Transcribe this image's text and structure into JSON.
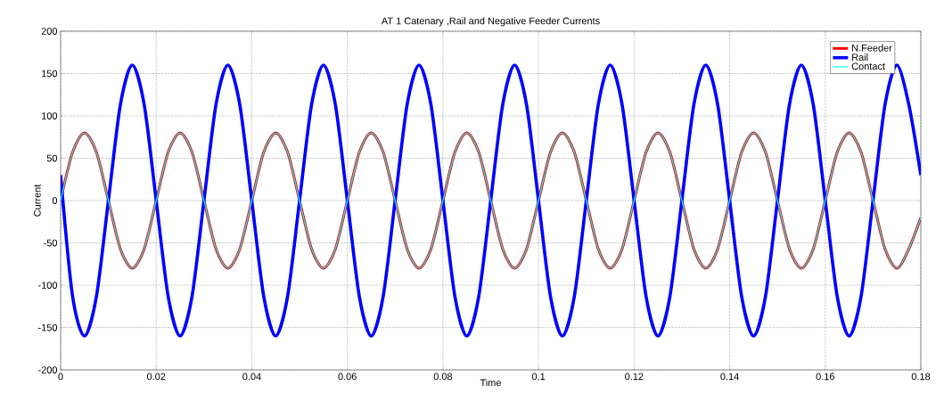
{
  "chart_data": {
    "type": "line",
    "title": "AT 1  Catenary ,Rail and Negative Feeder Currents",
    "xlabel": "Time",
    "ylabel": "Current",
    "xlim": [
      0,
      0.18
    ],
    "ylim": [
      -200,
      200
    ],
    "xticks": [
      0,
      0.02,
      0.04,
      0.06,
      0.08,
      0.1,
      0.12,
      0.14,
      0.16,
      0.18
    ],
    "yticks": [
      -200,
      -150,
      -100,
      -50,
      0,
      50,
      100,
      150,
      200
    ],
    "grid": true,
    "legend": "top right",
    "marker": "none",
    "line_style": "solid",
    "x": [
      0,
      0.0025,
      0.005,
      0.0075,
      0.01,
      0.0125,
      0.015,
      0.0175,
      0.02,
      0.0225,
      0.025,
      0.0275,
      0.03,
      0.0325,
      0.035,
      0.0375,
      0.04,
      0.0425,
      0.045,
      0.0475,
      0.05,
      0.0525,
      0.055,
      0.0575,
      0.06,
      0.0625,
      0.065,
      0.0675,
      0.07,
      0.0725,
      0.075,
      0.0775,
      0.08,
      0.0825,
      0.085,
      0.0875,
      0.09,
      0.0925,
      0.095,
      0.0975,
      0.1,
      0.1025,
      0.105,
      0.1075,
      0.11,
      0.1125,
      0.115,
      0.1175,
      0.12,
      0.1225,
      0.125,
      0.1275,
      0.13,
      0.1325,
      0.135,
      0.1375,
      0.14,
      0.1425,
      0.145,
      0.1475,
      0.15,
      0.1525,
      0.155,
      0.1575,
      0.16,
      0.1625,
      0.165,
      0.1675,
      0.17,
      0.1725,
      0.175,
      0.1775,
      0.18
    ],
    "series": [
      {
        "name": "N.Feeder",
        "color": "#ff0000",
        "values": [
          0,
          57,
          80,
          57,
          0,
          -57,
          -80,
          -57,
          0,
          57,
          80,
          57,
          0,
          -57,
          -80,
          -57,
          0,
          57,
          80,
          57,
          0,
          -57,
          -80,
          -57,
          0,
          57,
          80,
          57,
          0,
          -57,
          -80,
          -57,
          0,
          57,
          80,
          57,
          0,
          -57,
          -80,
          -57,
          0,
          57,
          80,
          57,
          0,
          -57,
          -80,
          -57,
          0,
          57,
          80,
          57,
          0,
          -57,
          -80,
          -57,
          0,
          57,
          80,
          57,
          0,
          -57,
          -80,
          -57,
          0,
          57,
          80,
          57,
          0,
          -57,
          -80,
          -57,
          -20
        ]
      },
      {
        "name": "Rail",
        "color": "#0000ff",
        "values": [
          30,
          -113,
          -160,
          -113,
          0,
          113,
          160,
          113,
          0,
          -113,
          -160,
          -113,
          0,
          113,
          160,
          113,
          0,
          -113,
          -160,
          -113,
          0,
          113,
          160,
          113,
          0,
          -113,
          -160,
          -113,
          0,
          113,
          160,
          113,
          0,
          -113,
          -160,
          -113,
          0,
          113,
          160,
          113,
          0,
          -113,
          -160,
          -113,
          0,
          113,
          160,
          113,
          0,
          -113,
          -160,
          -113,
          0,
          113,
          160,
          113,
          0,
          -113,
          -160,
          -113,
          0,
          113,
          160,
          113,
          0,
          -113,
          -160,
          -113,
          0,
          113,
          160,
          113,
          30
        ]
      },
      {
        "name": "Contact",
        "color": "#00ffff",
        "values": [
          0,
          57,
          80,
          57,
          0,
          -57,
          -80,
          -57,
          0,
          57,
          80,
          57,
          0,
          -57,
          -80,
          -57,
          0,
          57,
          80,
          57,
          0,
          -57,
          -80,
          -57,
          0,
          57,
          80,
          57,
          0,
          -57,
          -80,
          -57,
          0,
          57,
          80,
          57,
          0,
          -57,
          -80,
          -57,
          0,
          57,
          80,
          57,
          0,
          -57,
          -80,
          -57,
          0,
          57,
          80,
          57,
          0,
          -57,
          -80,
          -57,
          0,
          57,
          80,
          57,
          0,
          -57,
          -80,
          -57,
          0,
          57,
          80,
          57,
          0,
          -57,
          -80,
          -57,
          -20
        ]
      }
    ]
  }
}
